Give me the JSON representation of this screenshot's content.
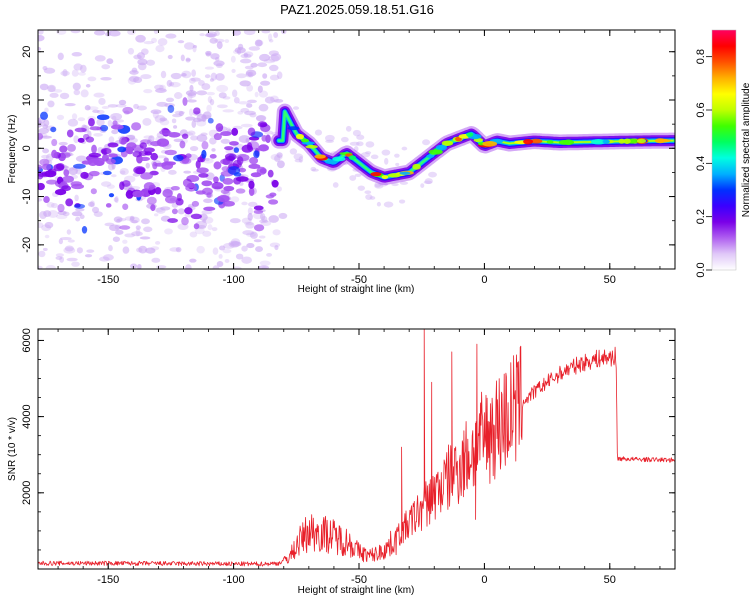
{
  "title": "PAZ1.2025.059.18.51.G16",
  "chart_data": [
    {
      "type": "heatmap",
      "xlabel": "Height of straight line (km)",
      "ylabel": "Frequency (Hz)",
      "xlim": [
        -178,
        76
      ],
      "ylim": [
        -25,
        24.5
      ],
      "xticks": [
        -150,
        -100,
        -50,
        0,
        50
      ],
      "yticks": [
        -20,
        -10,
        0,
        10,
        20
      ],
      "colorbar": {
        "label": "Normalized spectral amplitude",
        "range": [
          0,
          0.9
        ],
        "ticks": [
          0.0,
          0.2,
          0.4,
          0.6,
          0.8
        ],
        "colors": [
          "#ffffff",
          "#e0c8f8",
          "#b060f0",
          "#7a00e8",
          "#3a00ff",
          "#0030ff",
          "#00b0ff",
          "#00ffe0",
          "#00ff60",
          "#40ff00",
          "#c0ff00",
          "#ffff00",
          "#ffb000",
          "#ff5000",
          "#ff0000",
          "#ff0060"
        ]
      },
      "ridge": [
        {
          "x": -80,
          "y": 8
        },
        {
          "x": -75,
          "y": 3
        },
        {
          "x": -70,
          "y": 1
        },
        {
          "x": -65,
          "y": -2
        },
        {
          "x": -60,
          "y": -3
        },
        {
          "x": -55,
          "y": -1
        },
        {
          "x": -50,
          "y": -3
        },
        {
          "x": -45,
          "y": -5
        },
        {
          "x": -40,
          "y": -6
        },
        {
          "x": -35,
          "y": -5.5
        },
        {
          "x": -30,
          "y": -5
        },
        {
          "x": -25,
          "y": -3
        },
        {
          "x": -20,
          "y": -1
        },
        {
          "x": -15,
          "y": 1
        },
        {
          "x": -10,
          "y": 2
        },
        {
          "x": -5,
          "y": 3
        },
        {
          "x": 0,
          "y": 0.5
        },
        {
          "x": 5,
          "y": 1.5
        },
        {
          "x": 10,
          "y": 1
        },
        {
          "x": 20,
          "y": 1.5
        },
        {
          "x": 30,
          "y": 1.2
        },
        {
          "x": 40,
          "y": 1.3
        },
        {
          "x": 50,
          "y": 1.4
        },
        {
          "x": 60,
          "y": 1.5
        },
        {
          "x": 76,
          "y": 1.6
        }
      ]
    },
    {
      "type": "line",
      "xlabel": "Height of straight line (km)",
      "ylabel": "SNR (10 * v/v)",
      "xlim": [
        -178,
        76
      ],
      "ylim": [
        0,
        6300
      ],
      "xticks": [
        -150,
        -100,
        -50,
        0,
        50
      ],
      "yticks": [
        2000,
        4000,
        6000
      ],
      "series": [
        {
          "color": "#e8202a",
          "envelope": [
            {
              "x": -178,
              "y": 150
            },
            {
              "x": -150,
              "y": 150
            },
            {
              "x": -120,
              "y": 140
            },
            {
              "x": -90,
              "y": 130
            },
            {
              "x": -82,
              "y": 150
            },
            {
              "x": -78,
              "y": 300
            },
            {
              "x": -74,
              "y": 700
            },
            {
              "x": -70,
              "y": 1000
            },
            {
              "x": -66,
              "y": 950
            },
            {
              "x": -62,
              "y": 900
            },
            {
              "x": -58,
              "y": 800
            },
            {
              "x": -54,
              "y": 700
            },
            {
              "x": -50,
              "y": 450
            },
            {
              "x": -46,
              "y": 350
            },
            {
              "x": -42,
              "y": 420
            },
            {
              "x": -38,
              "y": 600
            },
            {
              "x": -34,
              "y": 900
            },
            {
              "x": -30,
              "y": 1200
            },
            {
              "x": -26,
              "y": 1500
            },
            {
              "x": -22,
              "y": 1800
            },
            {
              "x": -18,
              "y": 2100
            },
            {
              "x": -14,
              "y": 2400
            },
            {
              "x": -10,
              "y": 2700
            },
            {
              "x": -6,
              "y": 3000
            },
            {
              "x": -2,
              "y": 3300
            },
            {
              "x": 2,
              "y": 3600
            },
            {
              "x": 8,
              "y": 3950
            },
            {
              "x": 14,
              "y": 4300
            },
            {
              "x": 20,
              "y": 4650
            },
            {
              "x": 26,
              "y": 4950
            },
            {
              "x": 32,
              "y": 5200
            },
            {
              "x": 38,
              "y": 5380
            },
            {
              "x": 44,
              "y": 5500
            },
            {
              "x": 50,
              "y": 5560
            },
            {
              "x": 52.5,
              "y": 5580
            },
            {
              "x": 53,
              "y": 2900
            },
            {
              "x": 60,
              "y": 2880
            },
            {
              "x": 76,
              "y": 2860
            }
          ],
          "spikes": [
            {
              "x": -33,
              "y": 3200
            },
            {
              "x": -24,
              "y": 6300
            },
            {
              "x": -21,
              "y": 4900
            },
            {
              "x": -13,
              "y": 5700
            },
            {
              "x": -3,
              "y": 5900
            },
            {
              "x": -3.5,
              "y": 1300
            }
          ]
        }
      ]
    }
  ]
}
